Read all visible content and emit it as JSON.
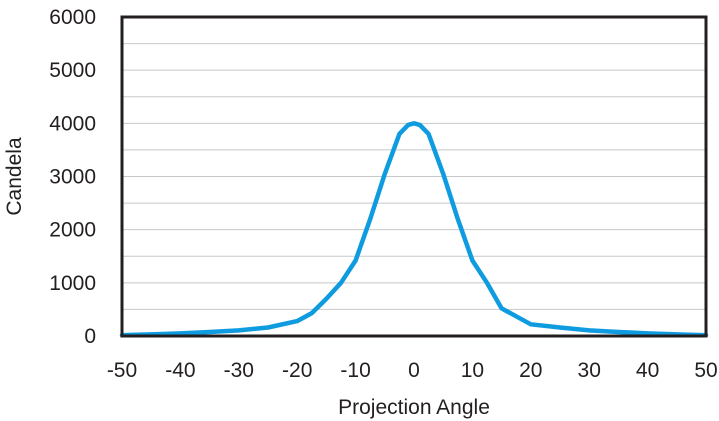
{
  "chart_data": {
    "type": "line",
    "title": "",
    "xlabel": "Projection Angle",
    "ylabel": "Candela",
    "xlim": [
      -50,
      50
    ],
    "ylim": [
      0,
      6000
    ],
    "xticks": [
      -50,
      -40,
      -30,
      -20,
      -10,
      0,
      10,
      20,
      30,
      40,
      50
    ],
    "yticks": [
      0,
      1000,
      2000,
      3000,
      4000,
      5000,
      6000
    ],
    "grid": true,
    "series": [
      {
        "name": "Candela",
        "color": "#0f9be0",
        "x": [
          -50,
          -45,
          -40,
          -35,
          -30,
          -25,
          -20,
          -17.5,
          -15,
          -12.5,
          -10,
          -7.5,
          -5,
          -2.5,
          -1,
          0,
          1,
          2.5,
          5,
          7.5,
          10,
          12.5,
          15,
          17.5,
          20,
          25,
          30,
          35,
          40,
          45,
          50
        ],
        "y": [
          15,
          30,
          50,
          75,
          105,
          160,
          280,
          430,
          700,
          1000,
          1420,
          2200,
          3050,
          3800,
          3970,
          4000,
          3970,
          3800,
          3050,
          2200,
          1420,
          1000,
          520,
          370,
          220,
          160,
          105,
          75,
          50,
          30,
          15
        ]
      }
    ]
  }
}
